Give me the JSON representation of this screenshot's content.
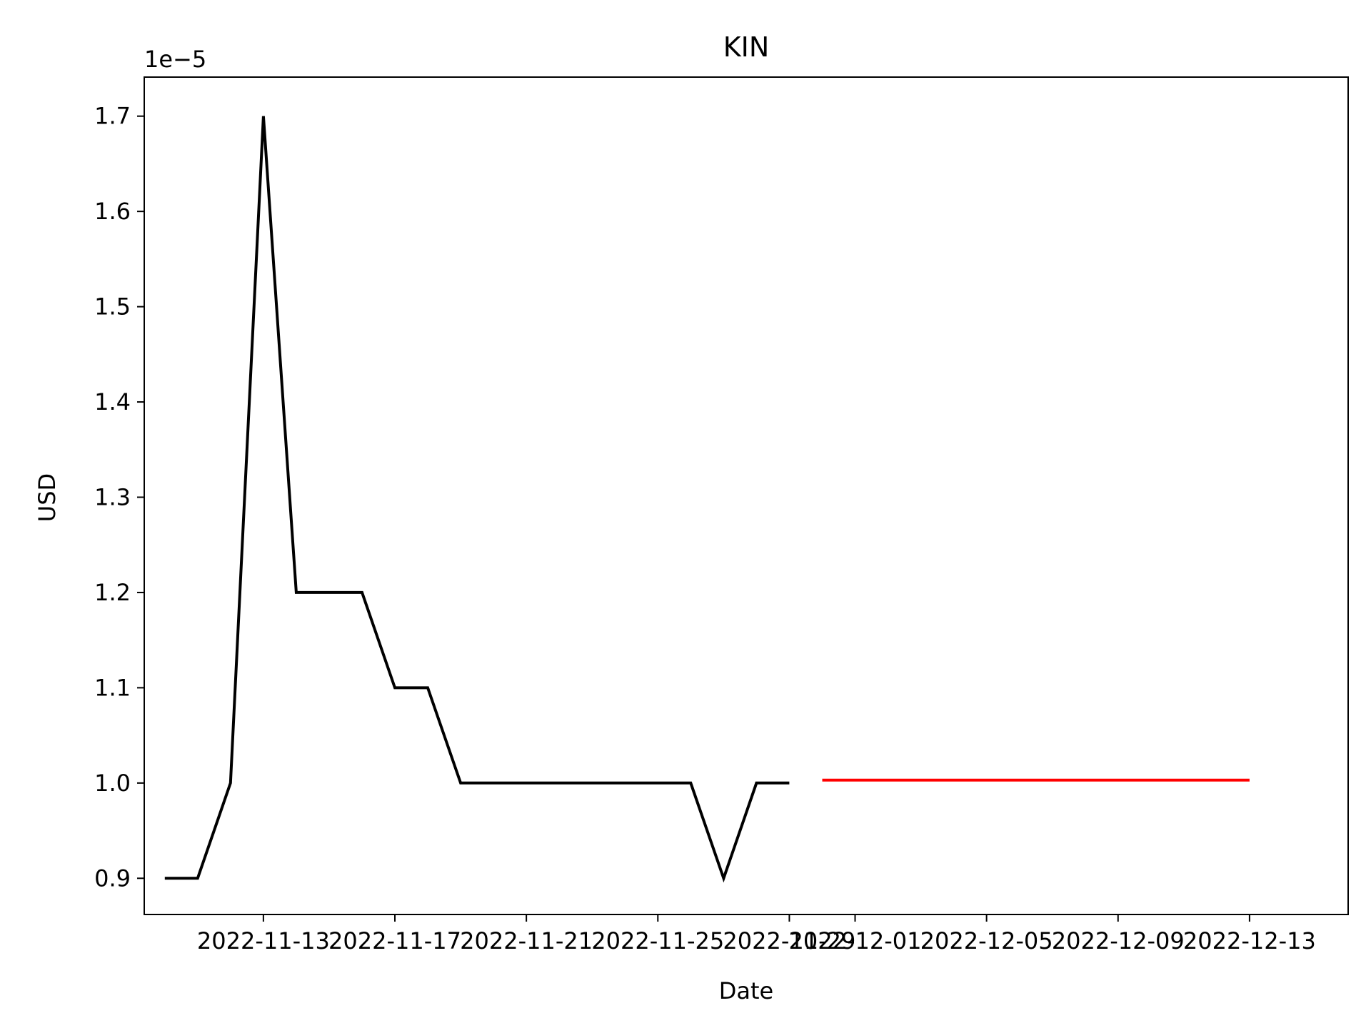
{
  "chart_data": {
    "type": "line",
    "title": "KIN",
    "xlabel": "Date",
    "ylabel": "USD",
    "y_offset_label": "1e−5",
    "y_scale": 1e-05,
    "x_tick_labels": [
      "2022-11-13",
      "2022-11-17",
      "2022-11-21",
      "2022-11-25",
      "2022-11-29",
      "2022-12-01",
      "2022-12-05",
      "2022-12-09",
      "2022-12-13"
    ],
    "y_tick_labels": [
      "0.9",
      "1.0",
      "1.1",
      "1.2",
      "1.3",
      "1.4",
      "1.5",
      "1.6",
      "1.7"
    ],
    "xlim": [
      "2022-11-09T09:00",
      "2022-12-16T00:00"
    ],
    "ylim": [
      0.862,
      1.741
    ],
    "grid": false,
    "series": [
      {
        "color": "#000000",
        "x": [
          "2022-11-10",
          "2022-11-11",
          "2022-11-12",
          "2022-11-13",
          "2022-11-14",
          "2022-11-15",
          "2022-11-16",
          "2022-11-17",
          "2022-11-18",
          "2022-11-19",
          "2022-11-20",
          "2022-11-21",
          "2022-11-22",
          "2022-11-23",
          "2022-11-24",
          "2022-11-25",
          "2022-11-26",
          "2022-11-27",
          "2022-11-28",
          "2022-11-29"
        ],
        "y": [
          0.9,
          0.9,
          1.0,
          1.7,
          1.2,
          1.2,
          1.2,
          1.1,
          1.1,
          1.0,
          1.0,
          1.0,
          1.0,
          1.0,
          1.0,
          1.0,
          1.0,
          0.9,
          1.0,
          1.0
        ]
      },
      {
        "color": "#ff0000",
        "x": [
          "2022-11-30",
          "2022-12-13"
        ],
        "y": [
          1.003,
          1.003
        ]
      }
    ]
  }
}
